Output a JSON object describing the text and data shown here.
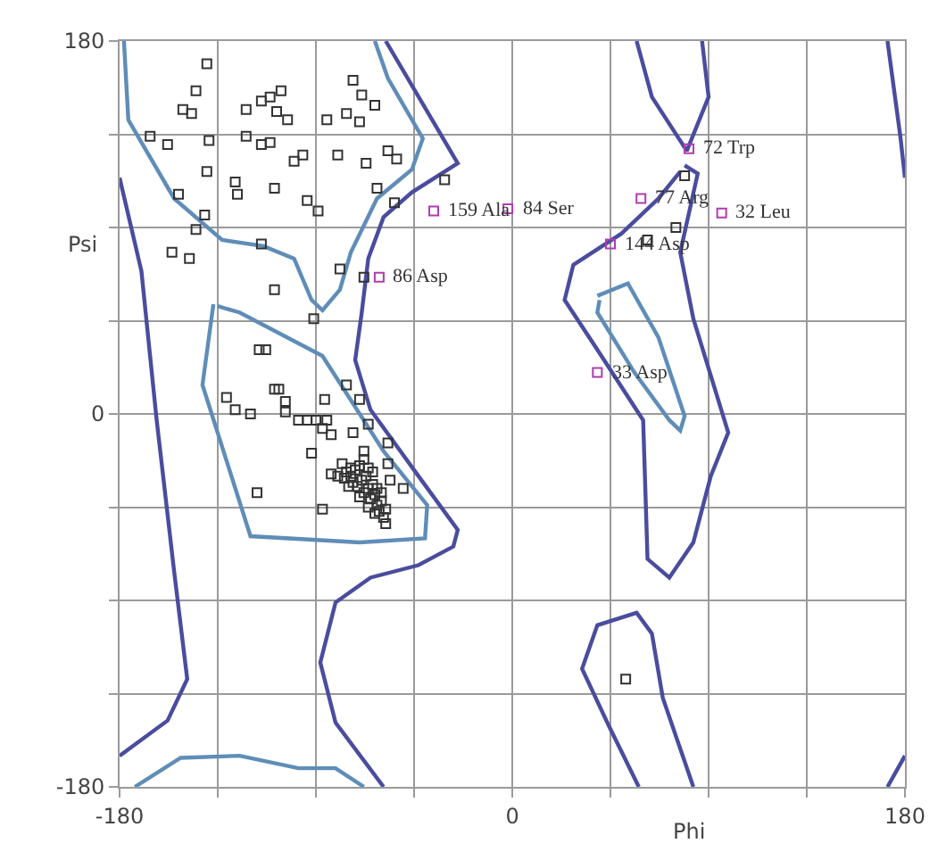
{
  "chart_data": {
    "type": "scatter",
    "xlabel": "Phi",
    "ylabel": "Psi",
    "xlim": [
      -180,
      180
    ],
    "ylim": [
      -180,
      180
    ],
    "xticks": [
      -180,
      {
        "value": -135,
        "label": null
      },
      {
        "value": -90,
        "label": null
      },
      {
        "value": -45,
        "label": null
      },
      0,
      {
        "value": 45,
        "label": null
      },
      {
        "value": 90,
        "label": null
      },
      {
        "value": 135,
        "label": null
      },
      180
    ],
    "yticks": [
      -180,
      {
        "value": -135,
        "label": null
      },
      {
        "value": -90,
        "label": null
      },
      {
        "value": -45,
        "label": null
      },
      0,
      {
        "value": 45,
        "label": null
      },
      {
        "value": 90,
        "label": null
      },
      {
        "value": 135,
        "label": null
      },
      180
    ],
    "grid": true,
    "series": [
      {
        "type": "line",
        "color": "#4a4c9e",
        "x": [
          -58,
          -25,
          -46,
          -59,
          -66,
          -69,
          -72,
          -65,
          -43,
          -25,
          -27,
          -43,
          -65,
          -81,
          -88,
          -81,
          -59
        ],
        "values": [
          180,
          121,
          107,
          95,
          75,
          49,
          26,
          2,
          -30,
          -56,
          -64,
          -73,
          -79,
          -91,
          -120,
          -149,
          -180
        ]
      },
      {
        "type": "line",
        "color": "#4a4c9e",
        "x": [
          -180,
          -170,
          -163,
          -155,
          -149,
          -158,
          -180
        ],
        "values": [
          114,
          69,
          -3,
          -76,
          -128,
          -148,
          -165
        ]
      },
      {
        "type": "line",
        "color": "#4a4c9e",
        "x": [
          172,
          178,
          180
        ],
        "values": [
          180,
          133,
          114
        ]
      },
      {
        "type": "line",
        "color": "#4a4c9e",
        "x": [
          180,
          172
        ],
        "values": [
          -165,
          -180
        ]
      },
      {
        "type": "line",
        "color": "#4a4c9e",
        "x": [
          57,
          64,
          80,
          90,
          87
        ],
        "values": [
          180,
          153,
          127,
          153,
          180
        ]
      },
      {
        "type": "line",
        "color": "#4a4c9e",
        "x": [
          58,
          44,
          32,
          39,
          57,
          64,
          69,
          83
        ],
        "values": [
          -180,
          -150,
          -123,
          -102,
          -96,
          -106,
          -137,
          -180
        ]
      },
      {
        "type": "line",
        "color": "#4a4c9e",
        "x": [
          79,
          85,
          77,
          83,
          99,
          91,
          83,
          72,
          62,
          60,
          39,
          24,
          28,
          50,
          67,
          77
        ],
        "values": [
          120,
          116,
          78,
          46,
          -9,
          -30,
          -62,
          -79,
          -70,
          -3,
          31,
          55,
          72,
          87,
          104,
          117
        ]
      },
      {
        "type": "line",
        "color": "#5f8db8",
        "x": [
          39,
          53,
          67,
          79,
          77,
          72,
          56,
          39,
          40
        ],
        "values": [
          57,
          63,
          37,
          -1,
          -8,
          -3,
          20,
          49,
          55
        ]
      },
      {
        "type": "line",
        "color": "#5f8db8",
        "x": [
          -178,
          -176,
          -155,
          -133,
          -114,
          -100,
          -92,
          -87,
          -79,
          -74,
          -62,
          -46,
          -41,
          -57,
          -63
        ],
        "values": [
          180,
          142,
          104,
          84,
          81,
          75,
          55,
          50,
          60,
          78,
          104,
          118,
          133,
          162,
          180
        ]
      },
      {
        "type": "line",
        "color": "#5f8db8",
        "x": [
          -137,
          -142,
          -120,
          -70,
          -40,
          -39,
          -59,
          -87,
          -125,
          -135
        ],
        "values": [
          53,
          14,
          -59,
          -62,
          -60,
          -44,
          -18,
          28,
          49,
          52
        ]
      },
      {
        "type": "line",
        "color": "#5f8db8",
        "x": [
          -173,
          -152,
          -125,
          -98,
          -81,
          -68
        ],
        "values": [
          -180,
          -166,
          -165,
          -171,
          -171,
          -180
        ]
      },
      {
        "color": "#333333",
        "marker": "square",
        "x": [
          -140,
          -145,
          -151,
          -147,
          -73,
          -69,
          -63,
          -115,
          -111,
          -106,
          -108,
          -103,
          -122,
          -85,
          -76,
          -70,
          -166,
          -158,
          -139,
          -122,
          -115,
          -111,
          -100,
          -96,
          -80,
          -67,
          -57,
          -53,
          -140,
          -127,
          -126,
          -109,
          -94,
          -89,
          -153,
          -62,
          -54,
          -31,
          -141,
          -145,
          -156,
          -148,
          -115,
          -79,
          -68,
          -109,
          -91,
          79,
          75,
          62,
          52,
          -116,
          -113,
          -109,
          -107,
          -131,
          -127,
          -120,
          -104,
          -104,
          -86,
          -76,
          -70,
          -98,
          -94,
          -90,
          -85,
          -87,
          -83,
          -73,
          -66,
          -57,
          -68,
          -92,
          -57,
          -56,
          -50,
          -83,
          -74,
          -117,
          -87,
          -58,
          -78,
          -76,
          -74,
          -72,
          -70,
          -73,
          -71,
          -69,
          -67,
          -68,
          -66,
          -64,
          -65,
          -63,
          -62,
          -60,
          -61,
          -59,
          -66,
          -70,
          -75,
          -77,
          -80,
          -64,
          -62,
          -68,
          -66,
          -60,
          -63,
          -58
        ],
        "values": [
          169,
          156,
          147,
          145,
          161,
          154,
          149,
          151,
          153,
          156,
          146,
          142,
          147,
          142,
          145,
          141,
          134,
          130,
          132,
          134,
          130,
          131,
          122,
          125,
          125,
          121,
          127,
          123,
          117,
          112,
          106,
          109,
          103,
          98,
          106,
          109,
          102,
          113,
          96,
          89,
          78,
          75,
          82,
          70,
          66,
          60,
          46,
          115,
          90,
          84,
          -128,
          31,
          31,
          12,
          12,
          8,
          2,
          0,
          6,
          1,
          7,
          14,
          7,
          -3,
          -3,
          -3,
          -3,
          -7,
          -10,
          -9,
          -5,
          -14,
          -18,
          -19,
          -24,
          -32,
          -36,
          -29,
          -26,
          -38,
          -46,
          -53,
          -24,
          -28,
          -30,
          -27,
          -25,
          -33,
          -35,
          -32,
          -30,
          -38,
          -36,
          -34,
          -41,
          -39,
          -44,
          -42,
          -47,
          -50,
          -45,
          -40,
          -35,
          -31,
          -30,
          -28,
          -36,
          -22,
          -26,
          -38,
          -48,
          -46
        ]
      },
      {
        "color": "#b03cb0",
        "marker": "square",
        "x": [
          -36,
          -2,
          -61,
          81,
          59,
          96,
          45,
          39
        ],
        "values": [
          98,
          99,
          66,
          128,
          104,
          97,
          82,
          20
        ]
      }
    ],
    "annotations": [
      {
        "text": "159 Ala",
        "x": -36,
        "y": 98
      },
      {
        "text": "84 Ser",
        "x": -2,
        "y": 99
      },
      {
        "text": "86 Asp",
        "x": -61,
        "y": 66
      },
      {
        "text": "72 Trp",
        "x": 81,
        "y": 128
      },
      {
        "text": "77 Arg",
        "x": 59,
        "y": 104
      },
      {
        "text": "32 Leu",
        "x": 96,
        "y": 97
      },
      {
        "text": "144 Asp",
        "x": 45,
        "y": 82
      },
      {
        "text": "33 Asp",
        "x": 39,
        "y": 20
      }
    ]
  }
}
